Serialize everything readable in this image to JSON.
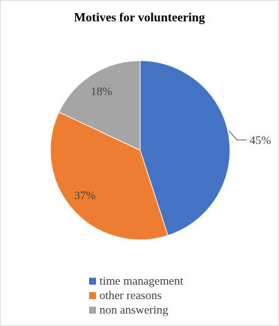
{
  "chart_data": {
    "type": "pie",
    "title": "Motives for volunteering",
    "labels": [
      "time management",
      "other reasons",
      "non answering"
    ],
    "values": [
      45,
      37,
      18
    ],
    "value_labels": [
      "45%",
      "37%",
      "18%"
    ],
    "colors": [
      "#4472C4",
      "#ED7D31",
      "#A5A5A5"
    ],
    "legend_position": "bottom"
  }
}
